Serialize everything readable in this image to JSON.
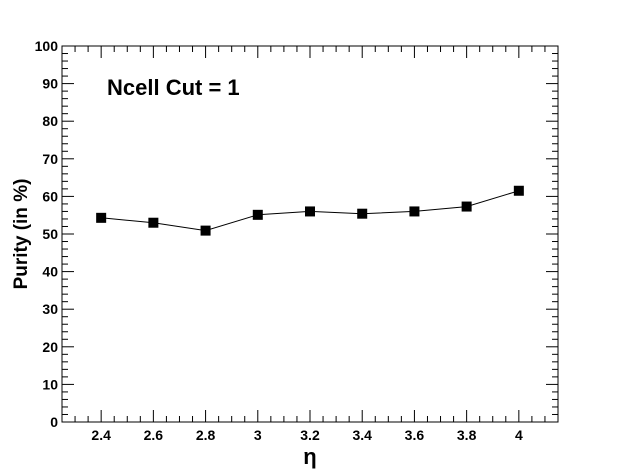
{
  "chart_data": {
    "type": "scatter",
    "title": "",
    "annotation": "Ncell Cut = 1",
    "xlabel": "η",
    "ylabel": "Purity (in %)",
    "xlim": [
      2.25,
      4.15
    ],
    "ylim": [
      0,
      100
    ],
    "x_ticks": [
      2.4,
      2.6,
      2.8,
      3,
      3.2,
      3.4,
      3.6,
      3.8,
      4
    ],
    "x_tick_labels": [
      "2.4",
      "2.6",
      "2.8",
      "3",
      "3.2",
      "3.4",
      "3.6",
      "3.8",
      "4"
    ],
    "y_ticks": [
      0,
      10,
      20,
      30,
      40,
      50,
      60,
      70,
      80,
      90,
      100
    ],
    "y_tick_labels": [
      "0",
      "10",
      "20",
      "30",
      "40",
      "50",
      "60",
      "70",
      "80",
      "90",
      "100"
    ],
    "grid": false,
    "legend": "none",
    "marker": "square",
    "connected": true,
    "series": [
      {
        "x": [
          2.4,
          2.6,
          2.8,
          3.0,
          3.2,
          3.4,
          3.6,
          3.8,
          4.0
        ],
        "y": [
          54.3,
          53.0,
          50.9,
          55.1,
          56.0,
          55.4,
          56.0,
          57.3,
          61.5
        ]
      }
    ]
  }
}
